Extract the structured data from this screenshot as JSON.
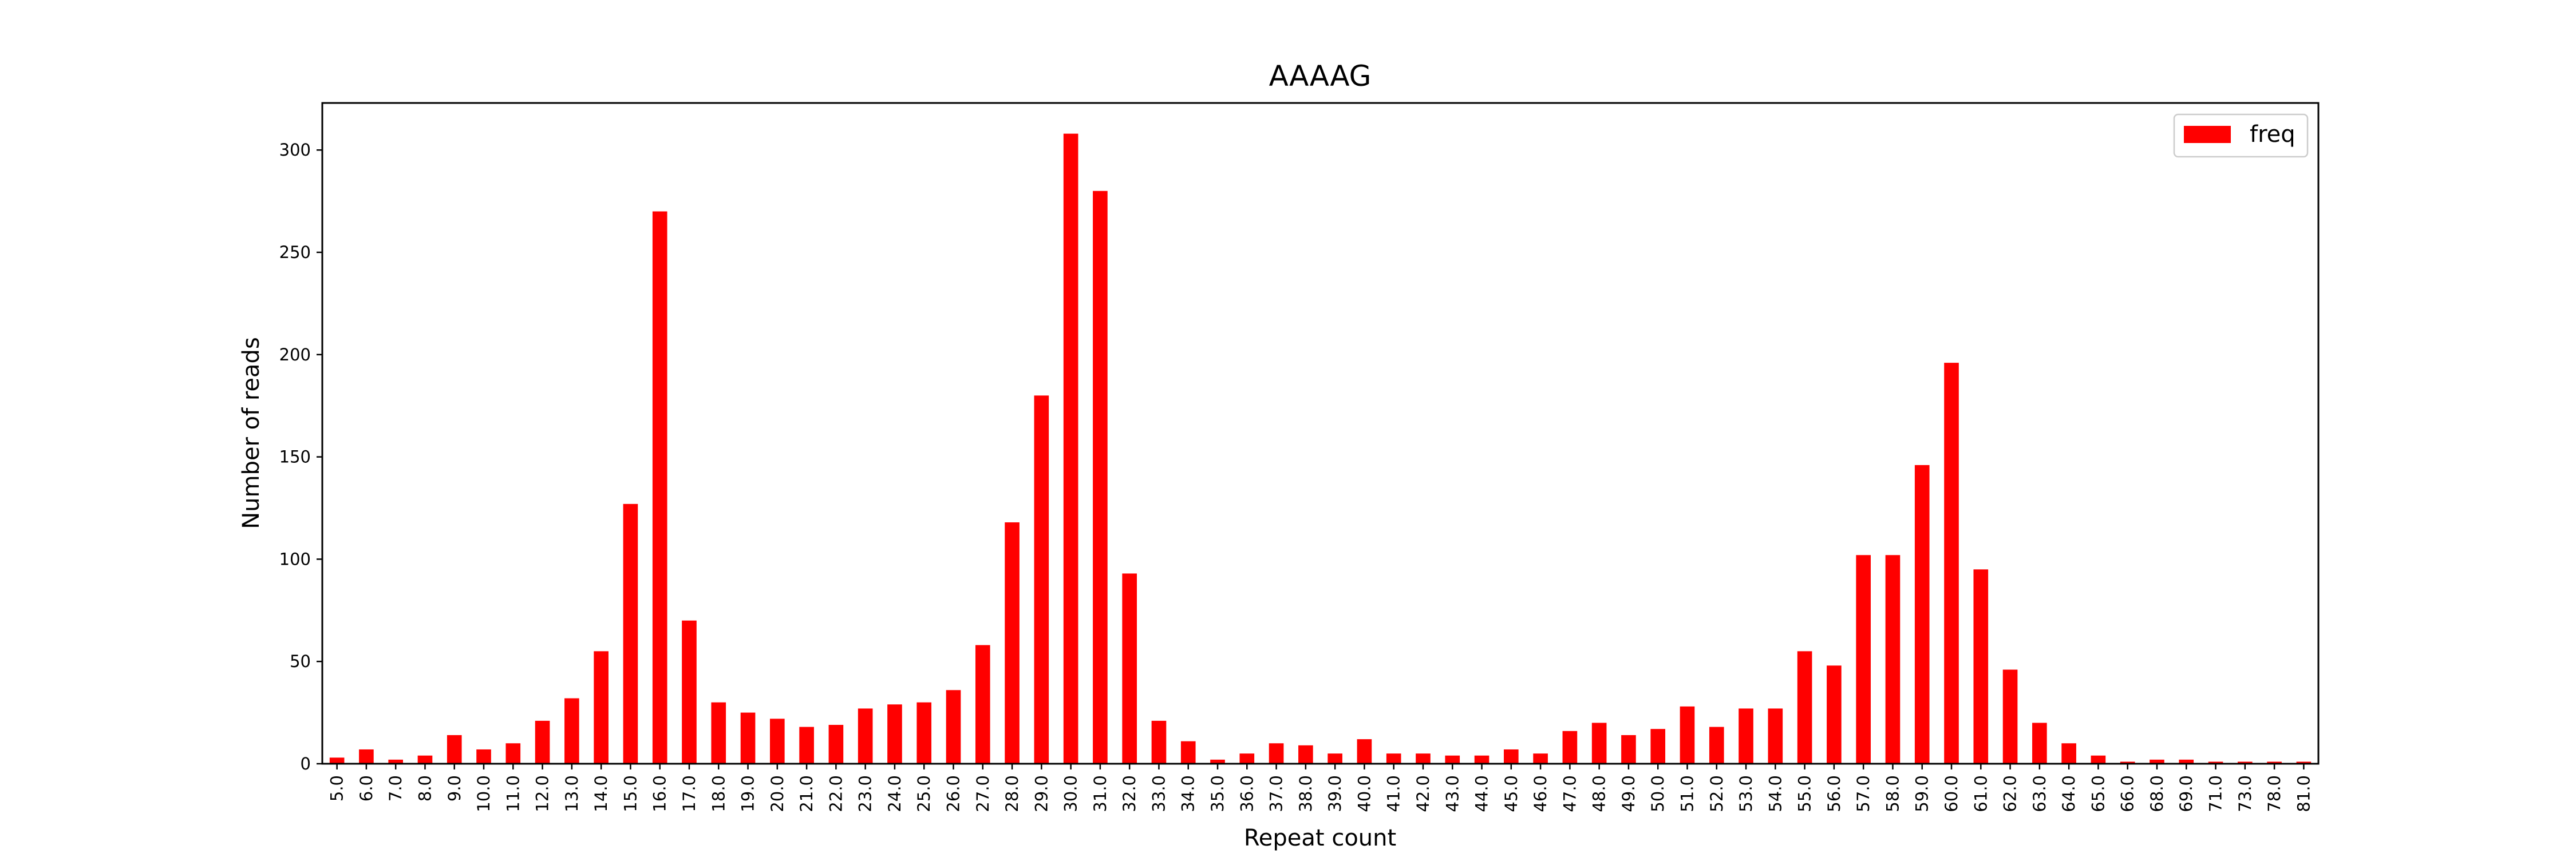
{
  "chart_data": {
    "type": "bar",
    "title": "AAAAG",
    "xlabel": "Repeat count",
    "ylabel": "Number of reads",
    "ylim": [
      0,
      323
    ],
    "yticks": [
      0,
      50,
      100,
      150,
      200,
      250,
      300
    ],
    "grid": false,
    "legend_position": "top-right",
    "categories": [
      "5.0",
      "6.0",
      "7.0",
      "8.0",
      "9.0",
      "10.0",
      "11.0",
      "12.0",
      "13.0",
      "14.0",
      "15.0",
      "16.0",
      "17.0",
      "18.0",
      "19.0",
      "20.0",
      "21.0",
      "22.0",
      "23.0",
      "24.0",
      "25.0",
      "26.0",
      "27.0",
      "28.0",
      "29.0",
      "30.0",
      "31.0",
      "32.0",
      "33.0",
      "34.0",
      "35.0",
      "36.0",
      "37.0",
      "38.0",
      "39.0",
      "40.0",
      "41.0",
      "42.0",
      "43.0",
      "44.0",
      "45.0",
      "46.0",
      "47.0",
      "48.0",
      "49.0",
      "50.0",
      "51.0",
      "52.0",
      "53.0",
      "54.0",
      "55.0",
      "56.0",
      "57.0",
      "58.0",
      "59.0",
      "60.0",
      "61.0",
      "62.0",
      "63.0",
      "64.0",
      "65.0",
      "66.0",
      "68.0",
      "69.0",
      "71.0",
      "73.0",
      "78.0",
      "81.0"
    ],
    "series": [
      {
        "name": "freq",
        "color": "#ff0000",
        "values": [
          3,
          7,
          2,
          4,
          14,
          7,
          10,
          21,
          32,
          55,
          127,
          270,
          70,
          30,
          25,
          22,
          18,
          19,
          27,
          29,
          30,
          36,
          58,
          118,
          180,
          308,
          280,
          93,
          21,
          11,
          2,
          5,
          10,
          9,
          5,
          12,
          5,
          5,
          4,
          4,
          7,
          5,
          16,
          20,
          14,
          17,
          28,
          18,
          27,
          27,
          55,
          48,
          102,
          102,
          146,
          196,
          95,
          46,
          20,
          10,
          4,
          1,
          2,
          2,
          1,
          1,
          1,
          1
        ]
      }
    ]
  }
}
